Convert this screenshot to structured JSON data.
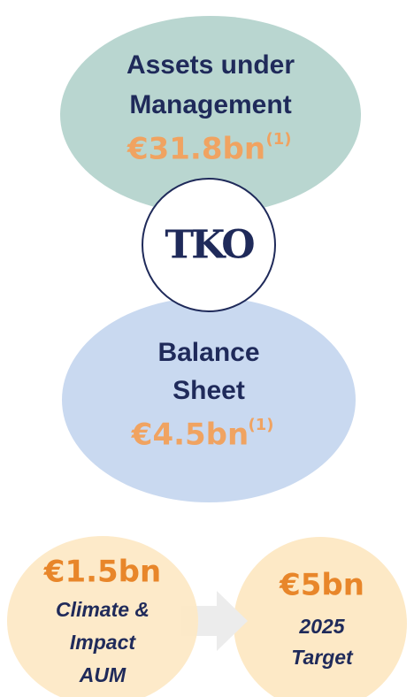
{
  "assets": {
    "title_lines": [
      "Assets under",
      "Management"
    ],
    "value": "€31.8bn",
    "note": "(1)"
  },
  "logo": {
    "text": "TKO"
  },
  "balance": {
    "title_lines": [
      "Balance",
      "Sheet"
    ],
    "value": "€4.5bn",
    "note": "(1)"
  },
  "current": {
    "value": "€1.5bn",
    "label_lines": [
      "Climate &",
      "Impact",
      "AUM"
    ]
  },
  "target": {
    "value": "€5bn",
    "label_lines": [
      "2025",
      "Target"
    ]
  }
}
